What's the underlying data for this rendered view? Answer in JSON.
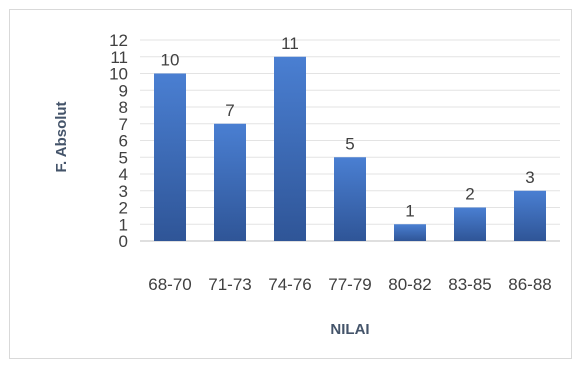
{
  "chart_data": {
    "type": "bar",
    "title": "",
    "xlabel": "NILAI",
    "ylabel": "F. Absolut",
    "categories": [
      "68-70",
      "71-73",
      "74-76",
      "77-79",
      "80-82",
      "83-85",
      "86-88"
    ],
    "values": [
      10,
      7,
      11,
      5,
      1,
      2,
      3
    ],
    "ylim": [
      0,
      12
    ],
    "yticks": [
      0,
      1,
      2,
      3,
      4,
      5,
      6,
      7,
      8,
      9,
      10,
      11,
      12
    ],
    "grid": true,
    "legend": "none",
    "bar_color": "#4472c4"
  }
}
